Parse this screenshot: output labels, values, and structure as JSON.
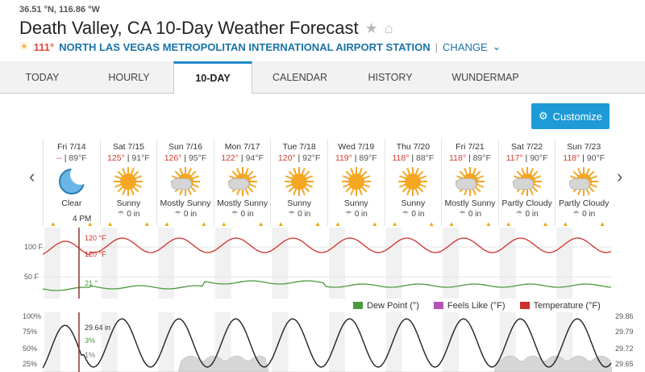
{
  "location": {
    "coords": "36.51 °N, 116.86 °W",
    "title": "Death Valley, CA 10-Day Weather Forecast",
    "current_temp": "111°",
    "station": "NORTH LAS VEGAS METROPOLITAN INTERNATIONAL AIRPORT STATION",
    "separator": "|",
    "change_label": "CHANGE"
  },
  "tabs": [
    "TODAY",
    "HOURLY",
    "10-DAY",
    "CALENDAR",
    "HISTORY",
    "WUNDERMAP"
  ],
  "active_tab": "10-DAY",
  "customize_label": "Customize",
  "days": [
    {
      "date": "Fri 7/14",
      "hi": "--",
      "lo": "89°F",
      "cond": "Clear",
      "precip": "",
      "icon": "moon-icon"
    },
    {
      "date": "Sat 7/15",
      "hi": "125°",
      "lo": "91°F",
      "cond": "Sunny",
      "precip": "0 in",
      "icon": "sun-icon"
    },
    {
      "date": "Sun 7/16",
      "hi": "126°",
      "lo": "95°F",
      "cond": "Mostly Sunny",
      "precip": "0 in",
      "icon": "partly-sunny-icon"
    },
    {
      "date": "Mon 7/17",
      "hi": "122°",
      "lo": "94°F",
      "cond": "Mostly Sunny",
      "precip": "0 in",
      "icon": "partly-sunny-icon"
    },
    {
      "date": "Tue 7/18",
      "hi": "120°",
      "lo": "92°F",
      "cond": "Sunny",
      "precip": "0 in",
      "icon": "sun-icon"
    },
    {
      "date": "Wed 7/19",
      "hi": "119°",
      "lo": "89°F",
      "cond": "Sunny",
      "precip": "0 in",
      "icon": "sun-icon"
    },
    {
      "date": "Thu 7/20",
      "hi": "118°",
      "lo": "88°F",
      "cond": "Sunny",
      "precip": "0 in",
      "icon": "sun-icon"
    },
    {
      "date": "Fri 7/21",
      "hi": "118°",
      "lo": "89°F",
      "cond": "Mostly Sunny",
      "precip": "0 in",
      "icon": "partly-sunny-icon"
    },
    {
      "date": "Sat 7/22",
      "hi": "117°",
      "lo": "90°F",
      "cond": "Partly Cloudy",
      "precip": "0 in",
      "icon": "partly-cloudy-icon"
    },
    {
      "date": "Sun 7/23",
      "hi": "118°",
      "lo": "90°F",
      "cond": "Partly Cloudy",
      "precip": "0 in",
      "icon": "partly-cloudy-icon"
    }
  ],
  "chart_data": [
    {
      "type": "line",
      "yticks": [
        "100 F",
        "50 F"
      ],
      "cursor_time": "4 PM",
      "cursor_labels": {
        "temp": "120 °F",
        "feels": "120 °F",
        "dew": "21 °"
      },
      "series": [
        {
          "name": "Dew Point (°)",
          "color": "#4a9a3c"
        },
        {
          "name": "Feels Like (°F)",
          "color": "#b453b8"
        },
        {
          "name": "Temperature (°F)",
          "color": "#d0302e"
        }
      ]
    },
    {
      "type": "line",
      "yticks_left": [
        "100%",
        "75%",
        "50%",
        "25%"
      ],
      "yticks_right": [
        "29.86",
        "29.79",
        "29.72",
        "29.65"
      ],
      "cursor_labels": {
        "pressure": "29.64 in",
        "precip_chance": "3%",
        "cloud": "1%"
      }
    }
  ]
}
